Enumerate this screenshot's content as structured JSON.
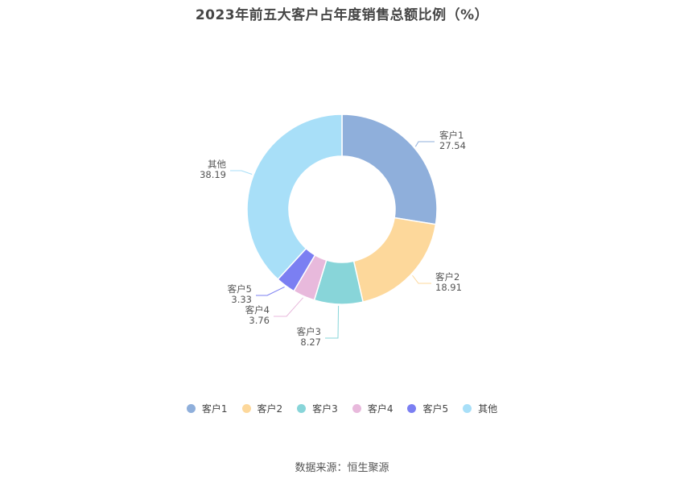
{
  "chart_data": {
    "type": "pie",
    "title": "2023年前五大客户占年度销售总额比例（%）",
    "categories": [
      "客户1",
      "客户2",
      "客户3",
      "客户4",
      "客户5",
      "其他"
    ],
    "values": [
      27.54,
      18.91,
      8.27,
      3.76,
      3.33,
      38.19
    ],
    "colors": [
      "#8fafdb",
      "#fdd89b",
      "#88d5d9",
      "#e8b9dc",
      "#7b7ff2",
      "#a8dff8"
    ],
    "legend_position": "bottom"
  },
  "source": "数据来源：恒生聚源"
}
